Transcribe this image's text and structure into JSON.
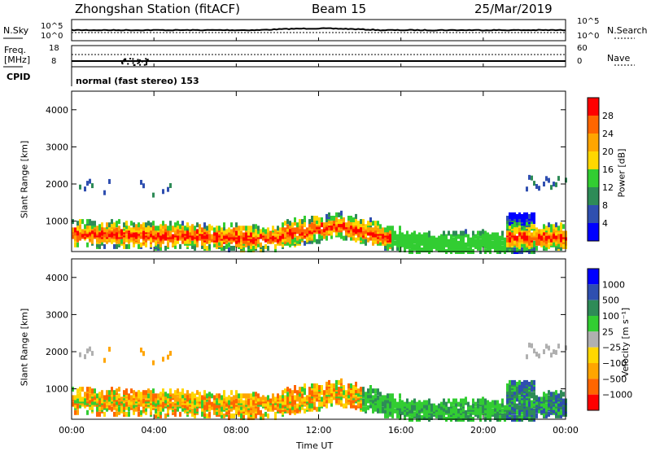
{
  "header": {
    "station": "Zhongshan Station (fitACF)",
    "beam": "Beam 15",
    "date": "25/Mar/2019"
  },
  "top_panels": {
    "nsky_label": "N.Sky",
    "nsky_ticks": [
      "10^5",
      "10^0"
    ],
    "nsearch_label": "N.Search",
    "nsearch_ticks": [
      "10^5",
      "10^0"
    ],
    "freq_label_line1": "Freq.",
    "freq_label_line2": "[MHz]",
    "freq_ticks": [
      "18",
      "8"
    ],
    "nave_label": "Nave",
    "nave_ticks": [
      "60",
      "0"
    ],
    "cpid_label": "CPID",
    "cpid_value": "normal (fast stereo) 153"
  },
  "colors": {
    "power_scale": [
      "#0000ff",
      "#2f4fb0",
      "#2e8b57",
      "#32cd32",
      "#ffd700",
      "#ffa500",
      "#ff6600",
      "#ff0000"
    ],
    "velocity_scale": [
      "#0000ff",
      "#2f4fb0",
      "#2e8b57",
      "#32cd32",
      "#b0b0b0",
      "#ffd700",
      "#ffa500",
      "#ff6600",
      "#ff0000"
    ]
  },
  "chart_data": [
    {
      "type": "heatmap",
      "name": "power",
      "ylabel": "Slant Range [km]",
      "yticks": [
        "1000",
        "2000",
        "3000",
        "4000"
      ],
      "ylim": [
        180,
        4500
      ],
      "xlim_hours": [
        0,
        24
      ],
      "colorbar_label": "Power [dB]",
      "colorbar_ticks": [
        "4",
        "8",
        "12",
        "16",
        "20",
        "24",
        "28"
      ],
      "colorbar_range": [
        0,
        32
      ]
    },
    {
      "type": "heatmap",
      "name": "velocity",
      "ylabel": "Slant Range [km]",
      "yticks": [
        "1000",
        "2000",
        "3000",
        "4000"
      ],
      "ylim": [
        180,
        4500
      ],
      "xlim_hours": [
        0,
        24
      ],
      "colorbar_label": "Velocity [m s⁻¹]",
      "colorbar_ticks": [
        "1000",
        "500",
        "100",
        "25",
        "−25",
        "−100",
        "−500",
        "−1000"
      ]
    }
  ],
  "xaxis": {
    "label": "Time UT",
    "ticks": [
      "00:00",
      "04:00",
      "08:00",
      "12:00",
      "16:00",
      "20:00",
      "00:00"
    ]
  }
}
